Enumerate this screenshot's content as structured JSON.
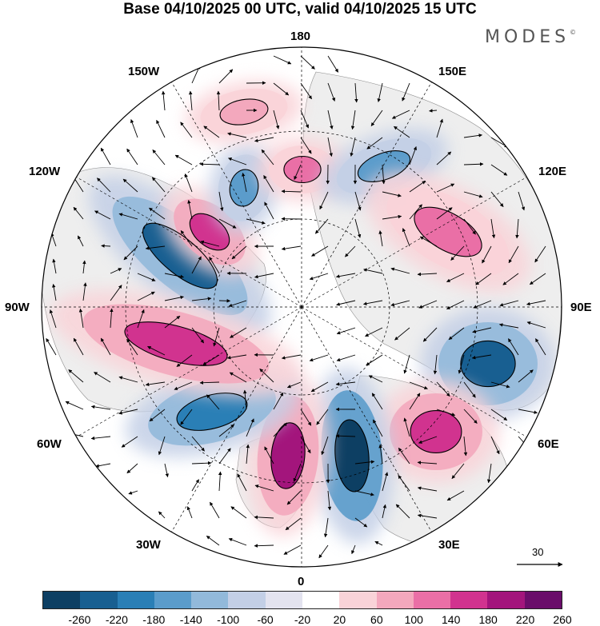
{
  "title": "Base 04/10/2025 00 UTC, valid 04/10/2025 15 UTC",
  "brand": "MODES",
  "brand_mark": "©",
  "longitude_labels": {
    "top": "180",
    "bottom": "0",
    "left": "90W",
    "right": "90E",
    "upper_left_outer": "120W",
    "upper_left_inner": "150W",
    "upper_right_inner": "150E",
    "upper_right_outer": "120E",
    "lower_left_outer": "60W",
    "lower_left_inner": "30W",
    "lower_right_inner": "30E",
    "lower_right_outer": "60E"
  },
  "reference_vector": {
    "label": "30"
  },
  "colorbar": {
    "ticks": [
      "-260",
      "-220",
      "-180",
      "-140",
      "-100",
      "-60",
      "-20",
      "20",
      "60",
      "100",
      "140",
      "180",
      "220",
      "260"
    ],
    "colors": [
      "#0d3f63",
      "#185f91",
      "#2a7fb6",
      "#5b9ccb",
      "#92b9da",
      "#c3cfe6",
      "#e3e3ef",
      "#ffffff",
      "#f9d3d8",
      "#f3a8bd",
      "#ea6fa6",
      "#d1338f",
      "#a3157c",
      "#6a0d6a"
    ]
  },
  "map": {
    "land_fill": "#eeeeee",
    "anomalies": [
      {
        "name": "ne-pacific-negative",
        "value": -220
      },
      {
        "name": "alaska-positive",
        "value": 200
      },
      {
        "name": "bering-negative",
        "value": -140
      },
      {
        "name": "east-siberia-positive",
        "value": 160
      },
      {
        "name": "north-pacific-positive",
        "value": 100
      },
      {
        "name": "kamchatka-negative",
        "value": -120
      },
      {
        "name": "central-asia-positive",
        "value": 140
      },
      {
        "name": "siberia-negative",
        "value": -200
      },
      {
        "name": "caspian-positive",
        "value": 180
      },
      {
        "name": "scandinavia-negative",
        "value": -260
      },
      {
        "name": "greenland-positive",
        "value": 220
      },
      {
        "name": "north-atlantic-negative",
        "value": -160
      },
      {
        "name": "canada-positive",
        "value": 180
      }
    ]
  }
}
